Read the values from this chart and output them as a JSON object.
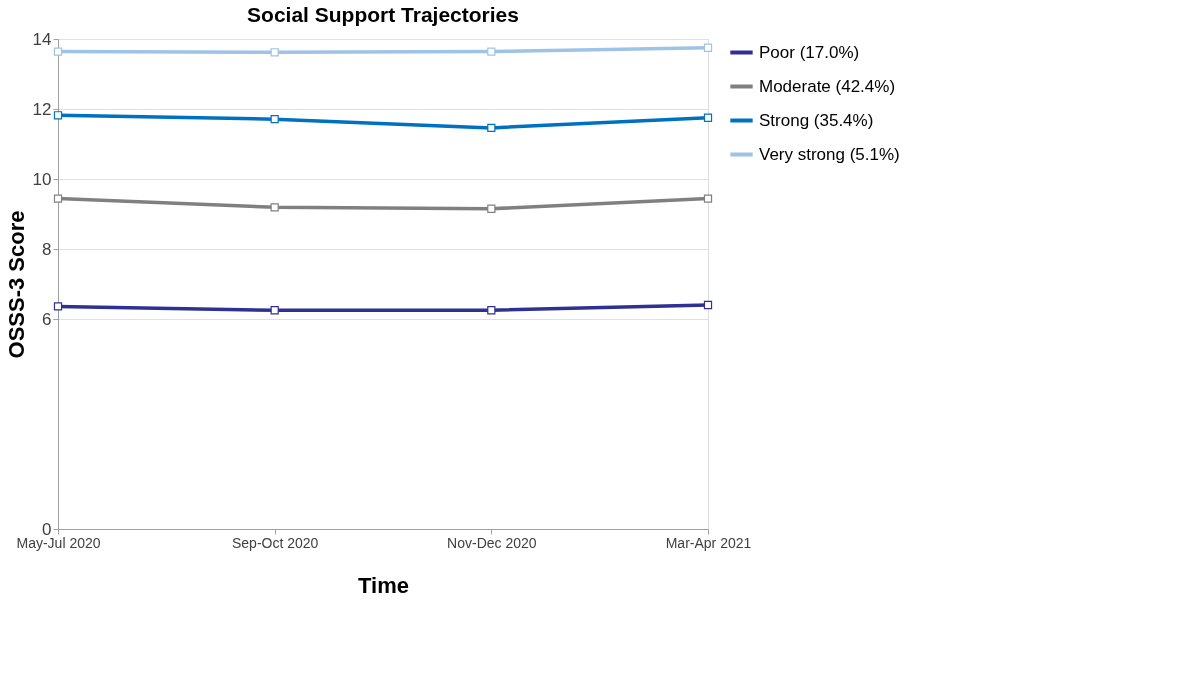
{
  "chart_data": {
    "type": "line",
    "title": "Social Support Trajectories",
    "xlabel": "Time",
    "ylabel": "OSSS-3  Score",
    "categories": [
      "May-Jul 2020",
      "Sep-Oct 2020",
      "Nov-Dec 2020",
      "Mar-Apr 2021"
    ],
    "series": [
      {
        "name": "Poor (17.0%)",
        "color": "#2e3192",
        "values": [
          6.36,
          6.25,
          6.25,
          6.4
        ]
      },
      {
        "name": "Moderate (42.4%)",
        "color": "#808080",
        "values": [
          9.44,
          9.19,
          9.15,
          9.44
        ]
      },
      {
        "name": "Strong (35.4%)",
        "color": "#0070c0",
        "values": [
          11.82,
          11.71,
          11.46,
          11.75
        ]
      },
      {
        "name": "Very strong (5.1%)",
        "color": "#9dc3e6",
        "values": [
          13.64,
          13.62,
          13.64,
          13.75
        ]
      }
    ],
    "ylim": [
      0,
      14
    ],
    "yticks": [
      0,
      6,
      8,
      10,
      12,
      14
    ],
    "grid": "y",
    "legend": "right",
    "marker": "square",
    "line_style": "solid"
  }
}
